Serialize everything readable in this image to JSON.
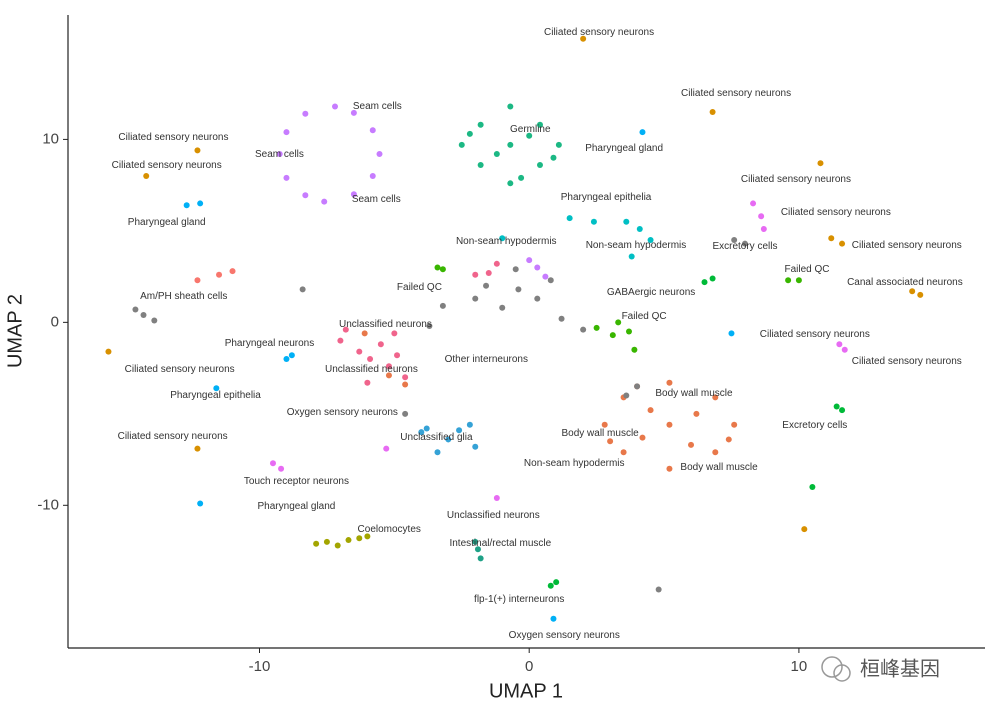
{
  "chart_data": {
    "type": "scatter",
    "x_label": "UMAP 1",
    "y_label": "UMAP 2",
    "xlim": [
      -17.1,
      16.9
    ],
    "ylim": [
      -17.8,
      16.8
    ],
    "xticks": [
      -10,
      0,
      10
    ],
    "yticks": [
      -10,
      0,
      10
    ],
    "series": [
      {
        "color": "#c77cff",
        "x": [
          -5.55,
          -5.8,
          -6.5,
          -7.2,
          -8.3,
          -9.0,
          -9.25,
          -9.0,
          -8.3,
          -7.6,
          -6.5,
          -5.8,
          0.3,
          0.6,
          0.0
        ],
        "y": [
          9.2,
          10.5,
          11.45,
          11.8,
          11.4,
          10.4,
          9.2,
          7.9,
          6.95,
          6.6,
          7.0,
          8.0,
          3.0,
          2.5,
          3.4
        ]
      },
      {
        "color": "#1cb884",
        "x": [
          -0.7,
          -2.5,
          1.1,
          -0.7,
          -0.7,
          -1.8,
          0.4,
          -1.8,
          0.4,
          -1.2,
          0.0,
          -2.2,
          0.9,
          -0.3
        ],
        "y": [
          9.7,
          9.7,
          9.7,
          11.8,
          7.6,
          10.8,
          10.8,
          8.6,
          8.6,
          9.2,
          10.2,
          10.3,
          9.0,
          7.9
        ]
      },
      {
        "color": "#e8784a",
        "x": [
          5.2,
          2.8,
          7.6,
          5.2,
          5.2,
          3.5,
          6.9,
          3.5,
          6.9,
          4.2,
          6.2,
          4.5,
          6.0,
          3.0,
          7.4,
          4.0,
          -5.2,
          -4.6,
          -6.1
        ],
        "y": [
          -5.6,
          -5.6,
          -5.6,
          -3.3,
          -8.0,
          -4.1,
          -4.1,
          -7.1,
          -7.1,
          -6.3,
          -5.0,
          -4.8,
          -6.7,
          -6.5,
          -6.4,
          -3.5,
          -2.9,
          -3.4,
          -0.6
        ]
      },
      {
        "color": "#f0648c",
        "x": [
          -5.9,
          -6.8,
          -5.0,
          -6.3,
          -5.2,
          -4.6,
          -6.0,
          -7.0,
          -5.5,
          -4.9,
          -1.5,
          -1.2,
          -2.0
        ],
        "y": [
          -2.0,
          -0.4,
          -0.6,
          -1.6,
          -2.4,
          -3.0,
          -3.3,
          -1.0,
          -1.2,
          -1.8,
          2.7,
          3.2,
          2.6
        ]
      },
      {
        "color": "#808080",
        "x": [
          -0.4,
          -1.6,
          -2.0,
          0.3,
          1.2,
          2.0,
          -0.5,
          -3.2,
          -1.0,
          0.8,
          4.0,
          3.6,
          -3.7,
          -14.6,
          -14.3,
          -13.9,
          -8.4,
          -4.6,
          8.0,
          7.6,
          4.8
        ],
        "y": [
          1.8,
          2.0,
          1.3,
          1.3,
          0.2,
          -0.4,
          2.9,
          0.9,
          0.8,
          2.3,
          -3.5,
          -4.0,
          -0.2,
          0.7,
          0.4,
          0.1,
          1.8,
          -5.0,
          4.3,
          4.5,
          -14.6
        ]
      },
      {
        "color": "#39b600",
        "x": [
          3.1,
          2.5,
          3.7,
          3.9,
          3.3,
          -3.4,
          -3.2,
          9.6,
          10.0
        ],
        "y": [
          -0.7,
          -0.3,
          -0.5,
          -1.5,
          0.0,
          3.0,
          2.9,
          2.3,
          2.3
        ]
      },
      {
        "color": "#35a2d6",
        "x": [
          -3.0,
          -4.0,
          -2.2,
          -2.0,
          -3.4,
          -3.8,
          -2.6
        ],
        "y": [
          -6.4,
          -6.0,
          -5.6,
          -6.8,
          -7.1,
          -5.8,
          -5.9
        ]
      },
      {
        "color": "#a3a500",
        "x": [
          -6.7,
          -7.5,
          -6.0,
          -7.1,
          -6.3,
          -7.9
        ],
        "y": [
          -11.9,
          -12.0,
          -11.7,
          -12.2,
          -11.8,
          -12.1
        ]
      },
      {
        "color": "#00bfc4",
        "x": [
          4.1,
          3.6,
          4.5,
          2.4,
          1.5,
          3.8,
          -1.0
        ],
        "y": [
          5.1,
          5.5,
          4.5,
          5.5,
          5.7,
          3.6,
          4.6
        ]
      },
      {
        "color": "#1fa187",
        "x": [
          -1.9,
          -2.0,
          -1.8
        ],
        "y": [
          -12.4,
          -12.0,
          -12.9
        ]
      },
      {
        "color": "#d89000",
        "x": [
          2.0,
          6.8,
          10.8,
          11.2,
          11.6,
          14.2,
          14.5,
          10.2,
          -12.3,
          -14.2,
          -12.3,
          -15.6
        ],
        "y": [
          15.5,
          11.5,
          8.7,
          4.6,
          4.3,
          1.7,
          1.5,
          -11.3,
          -6.9,
          8.0,
          9.4,
          -1.6
        ]
      },
      {
        "color": "#e76bf3",
        "x": [
          8.3,
          8.6,
          8.7,
          11.5,
          11.7,
          -5.3,
          -1.2,
          -9.5,
          -9.2
        ],
        "y": [
          6.5,
          5.8,
          5.1,
          -1.2,
          -1.5,
          -6.9,
          -9.6,
          -7.7,
          -8.0
        ]
      },
      {
        "color": "#00b0f6",
        "x": [
          -12.7,
          -12.2,
          -9.0,
          -8.8,
          -11.6,
          -12.2,
          0.9,
          4.2,
          7.5
        ],
        "y": [
          6.4,
          6.5,
          -2.0,
          -1.8,
          -3.6,
          -9.9,
          -16.2,
          10.4,
          -0.6
        ]
      },
      {
        "color": "#00ba38",
        "x": [
          0.8,
          1.0,
          6.5,
          6.8,
          11.4,
          11.6,
          10.5
        ],
        "y": [
          -14.4,
          -14.2,
          2.2,
          2.4,
          -4.6,
          -4.8,
          -9.0
        ]
      },
      {
        "color": "#f8766d",
        "x": [
          -12.3,
          -11.5,
          -11.0
        ],
        "y": [
          2.3,
          2.6,
          2.8
        ]
      }
    ],
    "annotations": [
      {
        "text": "Ciliated sensory neurons",
        "x": 2.59,
        "y": 15.85
      },
      {
        "text": "Ciliated sensory neurons",
        "x": 7.67,
        "y": 12.51
      },
      {
        "text": "Seam cells",
        "x": -5.63,
        "y": 11.8
      },
      {
        "text": "Ciliated sensory neurons",
        "x": -13.19,
        "y": 10.11
      },
      {
        "text": "Germline",
        "x": 0.04,
        "y": 10.55
      },
      {
        "text": "Pharyngeal gland",
        "x": 3.52,
        "y": 9.51
      },
      {
        "text": "Seam cells",
        "x": -9.26,
        "y": 9.18
      },
      {
        "text": "Ciliated sensory neurons",
        "x": -13.44,
        "y": 8.58
      },
      {
        "text": "Ciliated sensory neurons",
        "x": 9.89,
        "y": 7.81
      },
      {
        "text": "Seam cells",
        "x": -5.67,
        "y": 6.72
      },
      {
        "text": "Pharyngeal epithelia",
        "x": 2.85,
        "y": 6.83
      },
      {
        "text": "Ciliated sensory neurons",
        "x": 11.37,
        "y": 6.01
      },
      {
        "text": "Pharyngeal gland",
        "x": -13.44,
        "y": 5.46
      },
      {
        "text": "Non-seam hypodermis",
        "x": -0.85,
        "y": 4.43
      },
      {
        "text": "Non-seam hypodermis",
        "x": 3.96,
        "y": 4.21
      },
      {
        "text": "Excretory cells",
        "x": 8.0,
        "y": 4.15
      },
      {
        "text": "Ciliated sensory neurons",
        "x": 14.0,
        "y": 4.21
      },
      {
        "text": "Failed QC",
        "x": 10.3,
        "y": 2.9
      },
      {
        "text": "Canal associated neurons",
        "x": 13.93,
        "y": 2.19
      },
      {
        "text": "Failed QC",
        "x": -4.07,
        "y": 1.91
      },
      {
        "text": "GABAergic neurons",
        "x": 4.52,
        "y": 1.64
      },
      {
        "text": "Am/PH sheath cells",
        "x": -12.81,
        "y": 1.42
      },
      {
        "text": "Failed QC",
        "x": 4.26,
        "y": 0.33
      },
      {
        "text": "Unclassified neurons",
        "x": -5.33,
        "y": -0.11
      },
      {
        "text": "Ciliated sensory neurons",
        "x": 10.59,
        "y": -0.66
      },
      {
        "text": "Pharyngeal neurons",
        "x": -9.63,
        "y": -1.15
      },
      {
        "text": "Ciliated sensory neurons",
        "x": 14.0,
        "y": -2.13
      },
      {
        "text": "Other interneurons",
        "x": -1.59,
        "y": -2.02
      },
      {
        "text": "Ciliated sensory neurons",
        "x": -12.96,
        "y": -2.57
      },
      {
        "text": "Unclassified neurons",
        "x": -5.85,
        "y": -2.57
      },
      {
        "text": "Body wall muscle",
        "x": 6.11,
        "y": -3.88
      },
      {
        "text": "Pharyngeal epithelia",
        "x": -11.63,
        "y": -3.99
      },
      {
        "text": "Oxygen sensory neurons",
        "x": -6.93,
        "y": -4.92
      },
      {
        "text": "Excretory cells",
        "x": 10.59,
        "y": -5.63
      },
      {
        "text": "Ciliated sensory neurons",
        "x": -13.22,
        "y": -6.23
      },
      {
        "text": "Body wall muscle",
        "x": 2.63,
        "y": -6.07
      },
      {
        "text": "Unclassified glia",
        "x": -3.44,
        "y": -6.28
      },
      {
        "text": "Non-seam hypodermis",
        "x": 1.67,
        "y": -7.7
      },
      {
        "text": "Body wall muscle",
        "x": 7.04,
        "y": -7.92
      },
      {
        "text": "Touch receptor neurons",
        "x": -8.63,
        "y": -8.69
      },
      {
        "text": "Pharyngeal gland",
        "x": -8.63,
        "y": -10.05
      },
      {
        "text": "Unclassified neurons",
        "x": -1.33,
        "y": -10.55
      },
      {
        "text": "Coelomocytes",
        "x": -5.19,
        "y": -11.31
      },
      {
        "text": "Intestinal/rectal muscle",
        "x": -1.07,
        "y": -12.08
      },
      {
        "text": "flp-1(+) interneurons",
        "x": -0.37,
        "y": -15.14
      },
      {
        "text": "Oxygen sensory neurons",
        "x": 1.3,
        "y": -17.1
      }
    ]
  },
  "watermark": "桓峰基因"
}
